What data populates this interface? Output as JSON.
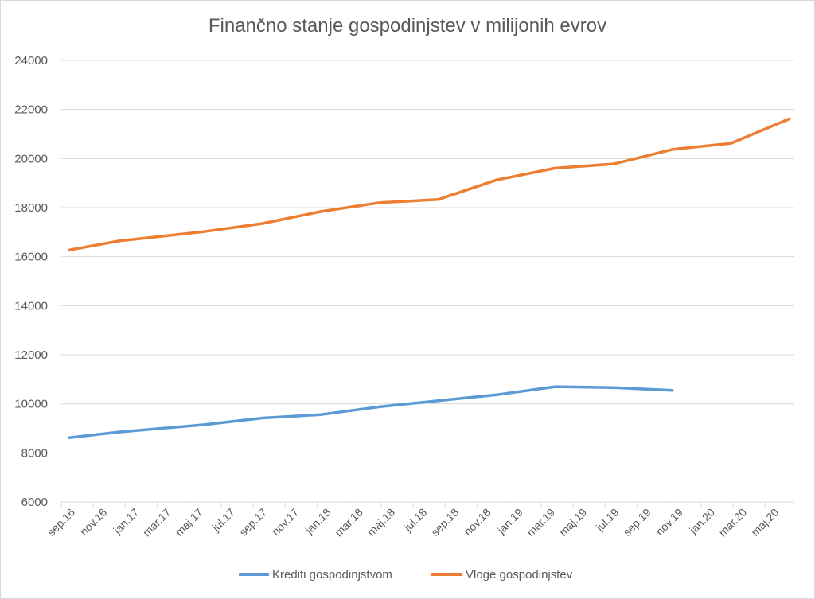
{
  "chart_data": {
    "type": "line",
    "title": "Finančno stanje gospodinjstev v milijonih evrov",
    "xlabel": "",
    "ylabel": "",
    "ylim": [
      6000,
      24000
    ],
    "yticks": [
      6000,
      8000,
      10000,
      12000,
      14000,
      16000,
      18000,
      20000,
      22000,
      24000
    ],
    "xtick_labels": [
      "sep.16",
      "nov.16",
      "jan.17",
      "mar.17",
      "maj.17",
      "jul.17",
      "sep.17",
      "nov.17",
      "jan.18",
      "mar.18",
      "maj.18",
      "jul.18",
      "sep.18",
      "nov.18",
      "jan.19",
      "mar.19",
      "maj.19",
      "jul.19",
      "sep.19",
      "nov.19",
      "jan.20",
      "mar.20",
      "maj.20"
    ],
    "grid": true,
    "legend_position": "bottom",
    "series": [
      {
        "name": "Krediti gospodinjstvom",
        "color": "#5b9bd5",
        "points": [
          [
            0,
            8620
          ],
          [
            1.7,
            8850
          ],
          [
            4.6,
            9150
          ],
          [
            6.6,
            9420
          ],
          [
            8.6,
            9560
          ],
          [
            10.6,
            9880
          ],
          [
            12.6,
            10130
          ],
          [
            14.6,
            10370
          ],
          [
            16.6,
            10700
          ],
          [
            18.6,
            10660
          ],
          [
            20.6,
            10550
          ]
        ]
      },
      {
        "name": "Vloge gospodinjstev",
        "color": "#ed7d31",
        "points": [
          [
            0,
            16270
          ],
          [
            1.7,
            16640
          ],
          [
            4.6,
            17020
          ],
          [
            6.6,
            17350
          ],
          [
            8.6,
            17840
          ],
          [
            10.6,
            18200
          ],
          [
            12.6,
            18330
          ],
          [
            14.6,
            19130
          ],
          [
            16.6,
            19610
          ],
          [
            18.6,
            19780
          ],
          [
            20.6,
            20370
          ],
          [
            22.6,
            20620
          ],
          [
            24.6,
            21620
          ]
        ]
      }
    ]
  }
}
